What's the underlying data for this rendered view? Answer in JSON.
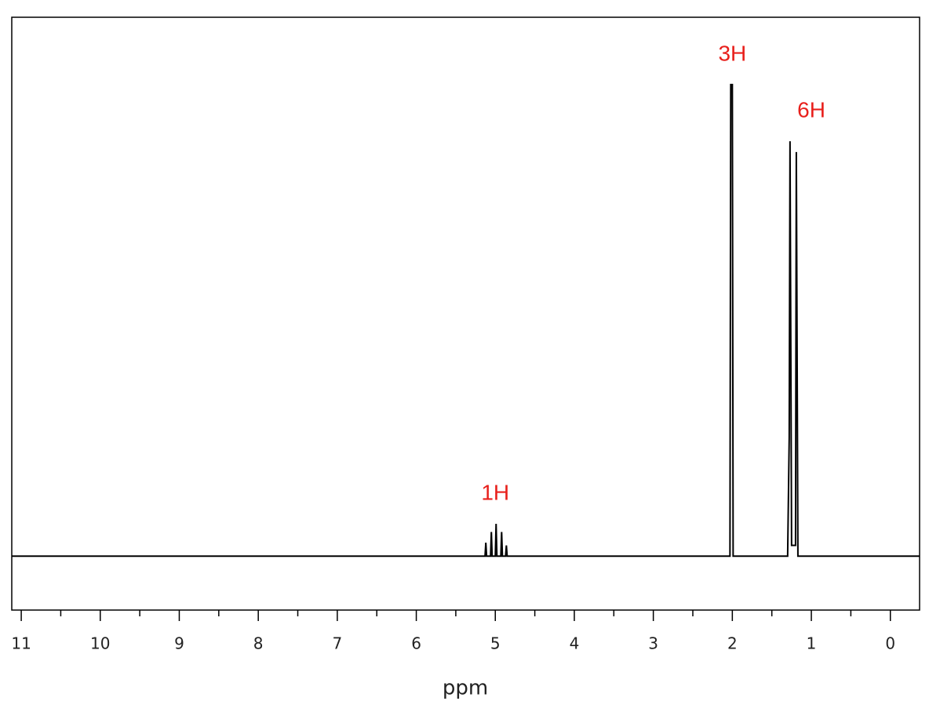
{
  "chart_data": {
    "type": "line",
    "x_label": "ppm",
    "color": "#000000",
    "annotation_color": "#e8201c",
    "x": [
      11.12,
      5.13,
      5.12,
      5.11,
      5.06,
      5.05,
      5.04,
      5.0,
      4.99,
      4.98,
      4.93,
      4.92,
      4.91,
      4.87,
      4.86,
      4.85,
      2.03,
      2.02,
      2.0,
      1.99,
      1.3,
      1.28,
      1.27,
      1.25,
      1.2,
      1.19,
      1.17,
      -0.37
    ],
    "values": [
      0,
      0,
      0.025,
      0,
      0,
      0.045,
      0,
      0,
      0.06,
      0,
      0,
      0.045,
      0,
      0,
      0.02,
      0,
      0,
      0.875,
      0.875,
      0,
      0,
      0.22,
      0.77,
      0.02,
      0.02,
      0.75,
      0,
      0
    ],
    "xlim": [
      11.12,
      -0.37
    ],
    "ylim": [
      -0.1,
      1.0
    ],
    "xticks": [
      11,
      10,
      9,
      8,
      7,
      6,
      5,
      4,
      3,
      2,
      1,
      0
    ],
    "xminorticks": [
      10.5,
      9.5,
      8.5,
      7.5,
      6.5,
      5.5,
      4.5,
      3.5,
      2.5,
      1.5,
      0.5
    ],
    "annotations": [
      {
        "text": "1H",
        "x": 5.0
      },
      {
        "text": "3H",
        "x": 2.0
      },
      {
        "text": "6H",
        "x": 1.0
      }
    ]
  }
}
